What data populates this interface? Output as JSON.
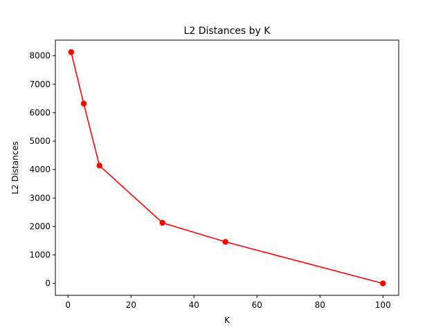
{
  "chart_data": {
    "type": "line",
    "title": "L2 Distances by K",
    "xlabel": "K",
    "ylabel": "L2 Distances",
    "xlim": [
      -4,
      105
    ],
    "ylim": [
      -420,
      8550
    ],
    "xticks": [
      0,
      20,
      40,
      60,
      80,
      100
    ],
    "yticks": [
      0,
      1000,
      2000,
      3000,
      4000,
      5000,
      6000,
      7000,
      8000
    ],
    "grid": false,
    "series": [
      {
        "color": "#ff0000",
        "marker": "circle",
        "x": [
          1,
          5,
          10,
          30,
          50,
          100
        ],
        "y": [
          8130,
          6320,
          4140,
          2130,
          1460,
          0
        ]
      }
    ]
  }
}
